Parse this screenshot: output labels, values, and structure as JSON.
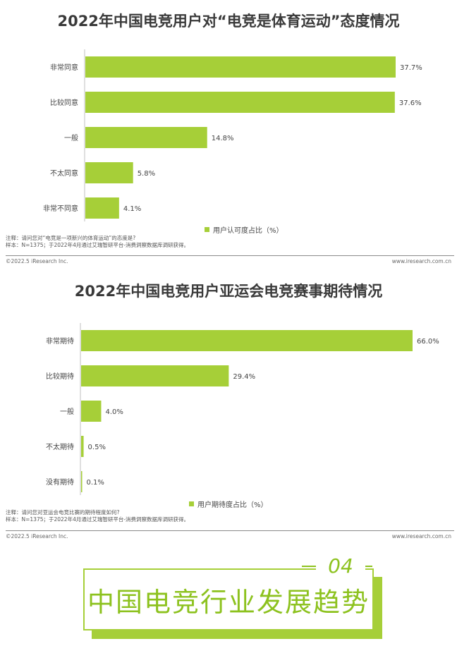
{
  "chart_data": [
    {
      "type": "bar",
      "orientation": "horizontal",
      "title": "2022年中国电竞用户对“电竞是体育运动”态度情况",
      "categories": [
        "非常同意",
        "比较同意",
        "一般",
        "不太同意",
        "非常不同意"
      ],
      "values": [
        37.7,
        37.6,
        14.8,
        5.8,
        4.1
      ],
      "value_labels": [
        "37.7%",
        "37.6%",
        "14.8%",
        "5.8%",
        "4.1%"
      ],
      "series": [
        {
          "name": "用户认可度占比（%）",
          "values": [
            37.7,
            37.6,
            14.8,
            5.8,
            4.1
          ]
        }
      ],
      "bar_color": "#a6cf38",
      "legend_position": "bottom",
      "grid": false
    },
    {
      "type": "bar",
      "orientation": "horizontal",
      "title": "2022年中国电竞用户亚运会电竞赛事期待情况",
      "categories": [
        "非常期待",
        "比较期待",
        "一般",
        "不太期待",
        "没有期待"
      ],
      "values": [
        66.0,
        29.4,
        4.0,
        0.5,
        0.1
      ],
      "value_labels": [
        "66.0%",
        "29.4%",
        "4.0%",
        "0.5%",
        "0.1%"
      ],
      "series": [
        {
          "name": "用户期待度占比（%）",
          "values": [
            66.0,
            29.4,
            4.0,
            0.5,
            0.1
          ]
        }
      ],
      "bar_color": "#a6cf38",
      "legend_position": "bottom",
      "grid": false
    }
  ],
  "notes": {
    "chart1_line1": "注释：请问您对“电竞是一项新兴的体育运动”的态度是?",
    "chart1_line2": "样本：N=1375；于2022年4月通过艾瑞智研平台-消费洞察数据库调研获得。",
    "chart2_line1": "注释：请问您对亚运会电竞比赛的期待程度如何?",
    "chart2_line2": "样本：N=1375；于2022年4月通过艾瑞智研平台-消费洞察数据库调研获得。"
  },
  "footer": {
    "copyright": "©2022.5 iResearch Inc.",
    "website": "www.iresearch.com.cn"
  },
  "section": {
    "number": "04",
    "title": "中国电竞行业发展趋势"
  }
}
